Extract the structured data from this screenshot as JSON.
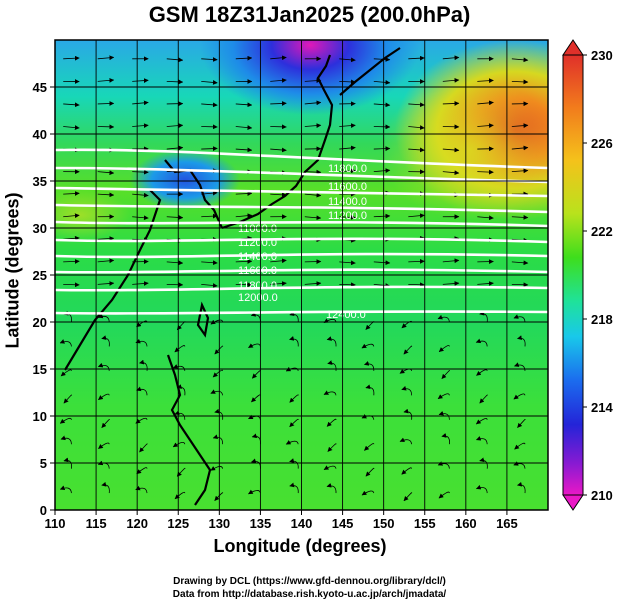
{
  "title": "GSM 18Z31Jan2025 (200.0hPa)",
  "x_axis_label": "Longitude (degrees)",
  "y_axis_label": "Latitude  (degrees)",
  "credits": [
    "Drawing by DCL (https://www.gfd-dennou.org/library/dcl/)",
    "Data from http://database.rish.kyoto-u.ac.jp/arch/jmadata/"
  ],
  "x_ticks": [
    "110",
    "115",
    "120",
    "125",
    "130",
    "135",
    "140",
    "145",
    "150",
    "155",
    "160",
    "165"
  ],
  "y_ticks": [
    "0",
    "5",
    "10",
    "15",
    "20",
    "25",
    "30",
    "35",
    "40",
    "45"
  ],
  "colorbar": {
    "labels": [
      "230",
      "226",
      "222",
      "218",
      "214",
      "210"
    ],
    "colors": [
      "#e0302a",
      "#f27c1c",
      "#f4c21b",
      "#b9e21c",
      "#3ede1c",
      "#1fe29a",
      "#19c8ea",
      "#1b6cee",
      "#2424d8",
      "#8a1ad2",
      "#ea18c6"
    ]
  },
  "contour_labels": [
    "11800.0",
    "11600.0",
    "11400.0",
    "11200.0",
    "11000.0",
    "11200.0",
    "11400.0",
    "11600.0",
    "11800.0",
    "12000.0",
    "12400.0"
  ],
  "chart_data": {
    "type": "heatmap",
    "title": "GSM 18Z31Jan2025 (200.0hPa)",
    "xlabel": "Longitude (degrees)",
    "ylabel": "Latitude  (degrees)",
    "xlim": [
      110,
      170
    ],
    "ylim": [
      0,
      50
    ],
    "colorbar_range": [
      210,
      230
    ],
    "colorbar_ticks": [
      210,
      214,
      218,
      222,
      226,
      230
    ],
    "contour_levels_gpm": [
      11000,
      11200,
      11400,
      11600,
      11800,
      12000,
      12400
    ],
    "overlay": "wind streamlines with arrows"
  }
}
